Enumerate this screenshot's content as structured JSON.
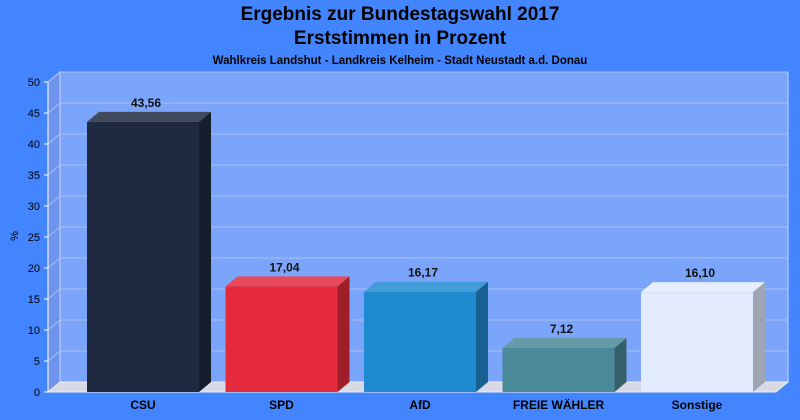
{
  "chart_data": {
    "type": "bar",
    "title": "Ergebnis zur Bundestagswahl 2017",
    "title_line2": "Erststimmen in Prozent",
    "subtitle": "Wahlkreis Landshut - Landkreis Kelheim - Stadt Neustadt a.d. Donau",
    "xlabel": "",
    "ylabel": "%",
    "ylim": [
      0,
      50
    ],
    "yticks": [
      0,
      5,
      10,
      15,
      20,
      25,
      30,
      35,
      40,
      45,
      50
    ],
    "grid": true,
    "categories": [
      "CSU",
      "SPD",
      "AfD",
      "FREIE WÄHLER",
      "Sonstige"
    ],
    "values": [
      43.56,
      17.04,
      16.17,
      7.12,
      16.1
    ],
    "value_labels": [
      "43,56",
      "17,04",
      "16,17",
      "7,12",
      "16,10"
    ],
    "colors": [
      "#1f2a40",
      "#e42a3c",
      "#1f8ad0",
      "#4a8a98",
      "#e2ebff"
    ]
  },
  "theme": {
    "background": "#4385fe",
    "plot_background": "#7ba4fb"
  }
}
